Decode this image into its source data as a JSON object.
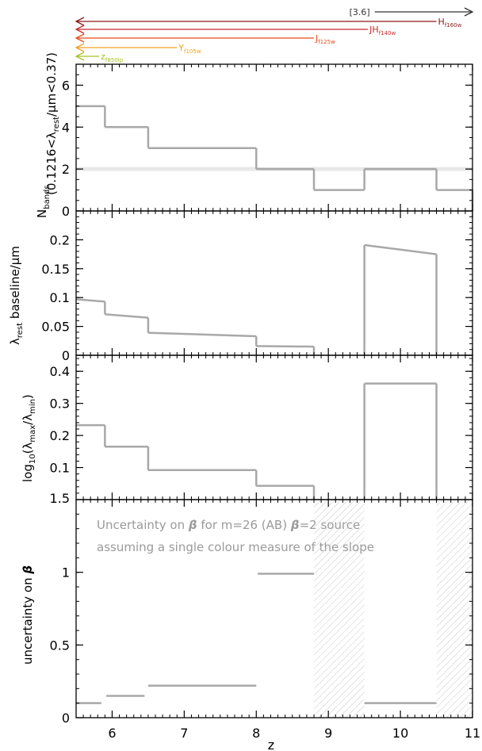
{
  "filters": [
    {
      "label": "[3.6]",
      "z_start": 9.6,
      "z_end": 11.0,
      "color": "#333333",
      "direction": "right",
      "sub": ""
    },
    {
      "label": "H",
      "sub": "f160w",
      "z_start": 5.5,
      "z_end": 10.5,
      "color": "#8b1a1a",
      "direction": "left"
    },
    {
      "label": "JH",
      "sub": "f140w",
      "z_start": 5.5,
      "z_end": 9.55,
      "color": "#c62828",
      "direction": "left"
    },
    {
      "label": "J",
      "sub": "f125w",
      "z_start": 5.5,
      "z_end": 8.8,
      "color": "#e64a19",
      "direction": "left"
    },
    {
      "label": "Y",
      "sub": "f105w",
      "z_start": 5.5,
      "z_end": 6.9,
      "color": "#f0a020",
      "direction": "left"
    },
    {
      "label": "z",
      "sub": "f850lp",
      "z_start": 5.5,
      "z_end": 5.82,
      "color": "#a8c020",
      "direction": "left"
    }
  ],
  "chart_data": [
    {
      "type": "line",
      "style": "step",
      "xlim": [
        5.5,
        11
      ],
      "ylim": [
        0,
        7
      ],
      "yticks": [
        "0",
        "2",
        "4",
        "6"
      ],
      "ylabel_main": "N",
      "ylabel_main_sub": "bands",
      "ylabel_note": "(0.1216<λ",
      "ylabel_note_sub": "rest",
      "ylabel_note_end": "/μm<0.37)",
      "reference_line": 2,
      "segments": [
        {
          "x": [
            5.5,
            5.9
          ],
          "y": [
            5,
            5
          ]
        },
        {
          "x": [
            5.9,
            6.5
          ],
          "y": [
            4,
            4
          ]
        },
        {
          "x": [
            6.5,
            8.0
          ],
          "y": [
            3,
            3
          ]
        },
        {
          "x": [
            8.0,
            8.8
          ],
          "y": [
            2,
            2
          ]
        },
        {
          "x": [
            8.8,
            9.5
          ],
          "y": [
            1,
            1
          ]
        },
        {
          "x": [
            9.5,
            10.5
          ],
          "y": [
            2,
            2
          ]
        },
        {
          "x": [
            10.5,
            11.0
          ],
          "y": [
            1,
            1
          ]
        }
      ]
    },
    {
      "type": "line",
      "xlim": [
        5.5,
        11
      ],
      "ylim": [
        0,
        0.25
      ],
      "yticks": [
        "0",
        "0.05",
        "0.1",
        "0.15",
        "0.2"
      ],
      "ylabel_main": "λ",
      "ylabel_main_sub": "rest",
      "ylabel_main_end": " baseline/μm",
      "segments": [
        {
          "x": [
            5.5,
            5.9
          ],
          "y": [
            0.097,
            0.093
          ]
        },
        {
          "x": [
            5.9,
            6.5
          ],
          "y": [
            0.071,
            0.065
          ]
        },
        {
          "x": [
            6.5,
            8.0
          ],
          "y": [
            0.039,
            0.033
          ]
        },
        {
          "x": [
            8.0,
            8.8
          ],
          "y": [
            0.016,
            0.015
          ]
        },
        {
          "x": [
            9.5,
            10.5
          ],
          "y": [
            0.191,
            0.175
          ]
        }
      ]
    },
    {
      "type": "line",
      "style": "step",
      "xlim": [
        5.5,
        11
      ],
      "ylim": [
        0,
        0.45
      ],
      "yticks": [
        "0.1",
        "0.2",
        "0.3",
        "0.4"
      ],
      "ylabel_main": "log",
      "ylabel_main_sub": "10",
      "ylabel_main_end": "(λ",
      "ylabel_max_sub": "max",
      "ylabel_mid": "/λ",
      "ylabel_min_sub": "min",
      "ylabel_close": ")",
      "segments": [
        {
          "x": [
            5.5,
            5.9
          ],
          "y": [
            0.232,
            0.232
          ]
        },
        {
          "x": [
            5.9,
            6.5
          ],
          "y": [
            0.165,
            0.165
          ]
        },
        {
          "x": [
            6.5,
            8.0
          ],
          "y": [
            0.092,
            0.092
          ]
        },
        {
          "x": [
            8.0,
            8.8
          ],
          "y": [
            0.043,
            0.043
          ]
        },
        {
          "x": [
            9.5,
            10.5
          ],
          "y": [
            0.362,
            0.362
          ]
        }
      ]
    },
    {
      "type": "line",
      "style": "horizontal-segments",
      "xlim": [
        5.5,
        11
      ],
      "ylim": [
        0,
        1.5
      ],
      "yticks": [
        "0",
        "0.5",
        "1"
      ],
      "top_label": "1.5",
      "ylabel_main": "uncertainty on ",
      "ylabel_beta": "β",
      "xlabel": "z",
      "xticks": [
        "6",
        "7",
        "8",
        "9",
        "10",
        "11"
      ],
      "annotation_line1_a": "Uncertainty on ",
      "annotation_line1_beta": "β",
      "annotation_line1_b": " for m=26 (AB) ",
      "annotation_line1_beta2": "β",
      "annotation_line1_c": "=2 source",
      "annotation_line2": "assuming a single colour measure of the slope",
      "hatched_ranges": [
        [
          8.8,
          9.5
        ],
        [
          10.5,
          11.0
        ]
      ],
      "segments": [
        {
          "x": [
            5.5,
            5.85
          ],
          "y": [
            0.1,
            0.1
          ]
        },
        {
          "x": [
            5.92,
            6.45
          ],
          "y": [
            0.15,
            0.15
          ]
        },
        {
          "x": [
            6.5,
            8.0
          ],
          "y": [
            0.22,
            0.22
          ]
        },
        {
          "x": [
            8.02,
            8.8
          ],
          "y": [
            0.99,
            0.99
          ]
        },
        {
          "x": [
            9.5,
            10.5
          ],
          "y": [
            0.1,
            0.1
          ]
        }
      ]
    }
  ]
}
